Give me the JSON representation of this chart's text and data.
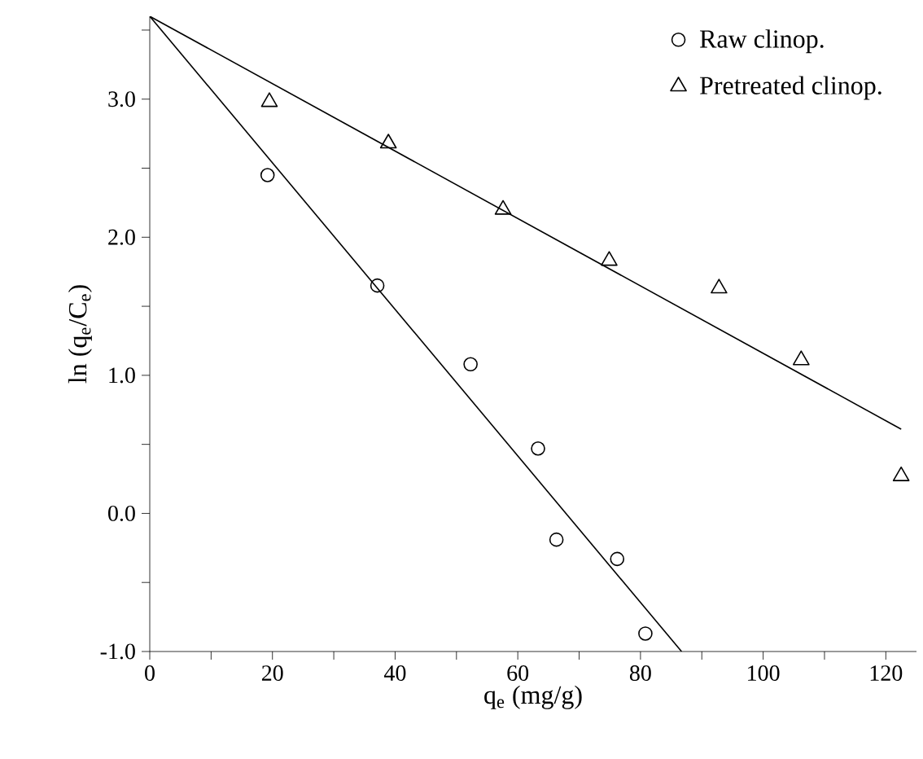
{
  "chart_data": {
    "type": "scatter",
    "xlabel": "q$_{e}$ (mg/g)",
    "ylabel": "ln (q$_{e}$/C$_{e}$)",
    "xlim": [
      0,
      125
    ],
    "ylim": [
      -1.0,
      3.6
    ],
    "xticks": [
      0,
      {
        "value": 10,
        "label": null
      },
      20,
      {
        "value": 30,
        "label": null
      },
      40,
      {
        "value": 50,
        "label": null
      },
      60,
      {
        "value": 70,
        "label": null
      },
      80,
      {
        "value": 90,
        "label": null
      },
      100,
      {
        "value": 110,
        "label": null
      },
      120
    ],
    "yticks": [
      {
        "value": -1,
        "label": "-1.0"
      },
      {
        "value": -0.5,
        "label": null
      },
      {
        "value": 0,
        "label": "0.0"
      },
      {
        "value": 0.5,
        "label": null
      },
      {
        "value": 1,
        "label": "1.0"
      },
      {
        "value": 1.5,
        "label": null
      },
      {
        "value": 2,
        "label": "2.0"
      },
      {
        "value": 2.5,
        "label": null
      },
      {
        "value": 3,
        "label": "3.0"
      },
      {
        "value": 3.5,
        "label": null
      }
    ],
    "legend": "top right",
    "grid": false,
    "series": [
      {
        "name": "Raw clinop.",
        "marker": "circle",
        "color": "#000000",
        "x": [
          19.2,
          37.1,
          52.3,
          63.3,
          66.3,
          76.2,
          80.8
        ],
        "values": [
          2.45,
          1.65,
          1.08,
          0.47,
          -0.19,
          -0.33,
          -0.87
        ]
      },
      {
        "name": "Pretreated clinop.",
        "marker": "triangle",
        "color": "#000000",
        "x": [
          19.5,
          38.9,
          57.6,
          74.9,
          92.8,
          106.2,
          122.5
        ],
        "values": [
          2.98,
          2.68,
          2.2,
          1.83,
          1.63,
          1.11,
          0.27
        ]
      },
      {
        "type": "line",
        "marker": "none",
        "line_style": "solid",
        "color": "#000000",
        "x": [
          0,
          86.7
        ],
        "values": [
          3.6,
          -1.0
        ]
      },
      {
        "type": "line",
        "marker": "none",
        "line_style": "solid",
        "color": "#000000",
        "x": [
          0,
          122.5
        ],
        "values": [
          3.6,
          0.61
        ]
      }
    ]
  }
}
